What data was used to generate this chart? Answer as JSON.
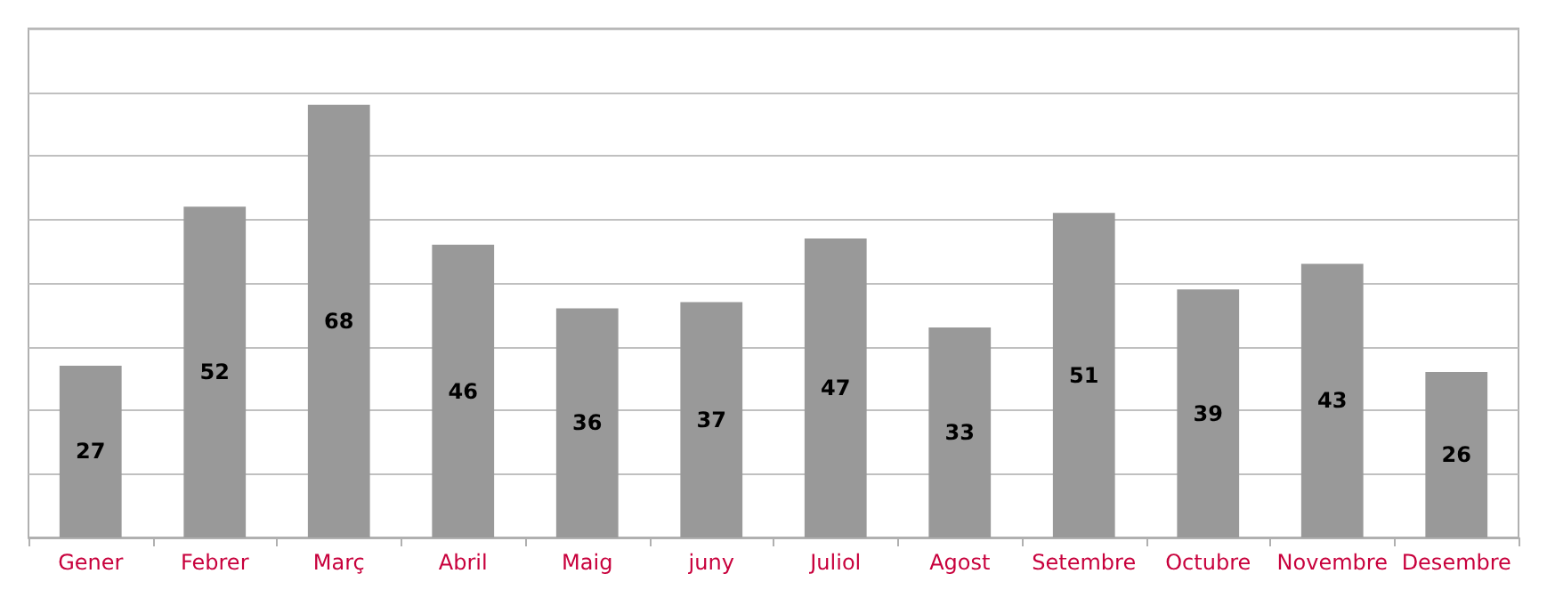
{
  "chart_data": {
    "type": "bar",
    "categories": [
      "Gener",
      "Febrer",
      "Març",
      "Abril",
      "Maig",
      "juny",
      "Juliol",
      "Agost",
      "Setembre",
      "Octubre",
      "Novembre",
      "Desembre"
    ],
    "values": [
      27,
      52,
      68,
      46,
      36,
      37,
      47,
      33,
      51,
      39,
      43,
      26
    ],
    "color": "#999999",
    "ylim": [
      0,
      80
    ],
    "yticks": [
      0,
      10,
      20,
      30,
      40,
      50,
      60,
      70,
      80
    ],
    "grid": "y",
    "tick_labels": "x",
    "data_labels": true
  }
}
